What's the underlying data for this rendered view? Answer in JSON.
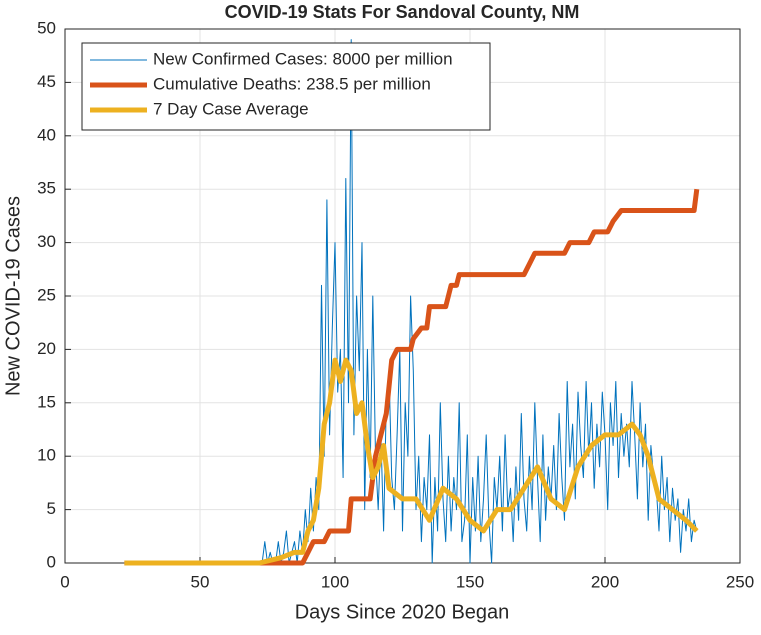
{
  "chart_data": {
    "type": "line",
    "title": "COVID-19 Stats For Sandoval County, NM",
    "xlabel": "Days Since 2020 Began",
    "ylabel": "New COVID-19 Cases",
    "xlim": [
      0,
      250
    ],
    "xticks": [
      0,
      50,
      100,
      150,
      200,
      250
    ],
    "ylim": [
      0,
      50
    ],
    "yticks": [
      0,
      5,
      10,
      15,
      20,
      25,
      30,
      35,
      40,
      45,
      50
    ],
    "grid": true,
    "legend": "northwest",
    "series": [
      {
        "name": "New Confirmed Cases: 8000 per million",
        "color": "#0072BD",
        "width": 1,
        "x": [
          22,
          23,
          24,
          25,
          26,
          27,
          28,
          29,
          30,
          31,
          32,
          33,
          34,
          35,
          36,
          37,
          38,
          39,
          40,
          41,
          42,
          43,
          44,
          45,
          46,
          47,
          48,
          49,
          50,
          51,
          52,
          53,
          54,
          55,
          56,
          57,
          58,
          59,
          60,
          61,
          62,
          63,
          64,
          65,
          66,
          67,
          68,
          69,
          70,
          71,
          72,
          73,
          74,
          75,
          76,
          77,
          78,
          79,
          80,
          81,
          82,
          83,
          84,
          85,
          86,
          87,
          88,
          89,
          90,
          91,
          92,
          93,
          94,
          95,
          96,
          97,
          98,
          99,
          100,
          101,
          102,
          103,
          104,
          105,
          106,
          107,
          108,
          109,
          110,
          111,
          112,
          113,
          114,
          115,
          116,
          117,
          118,
          119,
          120,
          121,
          122,
          123,
          124,
          125,
          126,
          127,
          128,
          129,
          130,
          131,
          132,
          133,
          134,
          135,
          136,
          137,
          138,
          139,
          140,
          141,
          142,
          143,
          144,
          145,
          146,
          147,
          148,
          149,
          150,
          151,
          152,
          153,
          154,
          155,
          156,
          157,
          158,
          159,
          160,
          161,
          162,
          163,
          164,
          165,
          166,
          167,
          168,
          169,
          170,
          171,
          172,
          173,
          174,
          175,
          176,
          177,
          178,
          179,
          180,
          181,
          182,
          183,
          184,
          185,
          186,
          187,
          188,
          189,
          190,
          191,
          192,
          193,
          194,
          195,
          196,
          197,
          198,
          199,
          200,
          201,
          202,
          203,
          204,
          205,
          206,
          207,
          208,
          209,
          210,
          211,
          212,
          213,
          214,
          215,
          216,
          217,
          218,
          219,
          220,
          221,
          222,
          223,
          224,
          225,
          226,
          227,
          228,
          229,
          230,
          231,
          232,
          233,
          234
        ],
        "values": [
          0,
          0,
          0,
          0,
          0,
          0,
          0,
          0,
          0,
          0,
          0,
          0,
          0,
          0,
          0,
          0,
          0,
          0,
          0,
          0,
          0,
          0,
          0,
          0,
          0,
          0,
          0,
          0,
          0,
          0,
          0,
          0,
          0,
          0,
          0,
          0,
          0,
          0,
          0,
          0,
          0,
          0,
          0,
          0,
          0,
          0,
          0,
          0,
          0,
          0,
          0,
          0,
          2,
          0,
          1,
          0,
          0,
          2,
          0,
          1,
          3,
          0,
          1,
          2,
          0,
          3,
          1,
          5,
          2,
          7,
          3,
          8,
          5,
          26,
          10,
          34,
          12,
          22,
          30,
          16,
          20,
          8,
          36,
          15,
          49,
          12,
          25,
          18,
          30,
          5,
          20,
          8,
          25,
          10,
          5,
          12,
          3,
          15,
          18,
          8,
          5,
          12,
          20,
          3,
          15,
          10,
          25,
          18,
          5,
          10,
          2,
          8,
          5,
          12,
          0,
          8,
          3,
          15,
          6,
          2,
          10,
          3,
          8,
          5,
          15,
          2,
          4,
          12,
          0,
          8,
          3,
          10,
          2,
          6,
          12,
          4,
          0,
          8,
          5,
          10,
          3,
          12,
          5,
          7,
          2,
          9,
          4,
          14,
          6,
          3,
          10,
          5,
          15,
          8,
          2,
          12,
          4,
          9,
          6,
          11,
          5,
          14,
          8,
          4,
          17,
          9,
          13,
          6,
          16,
          11,
          8,
          17,
          10,
          15,
          7,
          13,
          9,
          16,
          12,
          5,
          15,
          11,
          17,
          8,
          14,
          10,
          13,
          9,
          17,
          12,
          6,
          15,
          9,
          13,
          4,
          11,
          8,
          7,
          3,
          10,
          5,
          8,
          2,
          7,
          4,
          6,
          1,
          5,
          3,
          6,
          2,
          4,
          3
        ]
      },
      {
        "name": "Cumulative Deaths: 238.5 per million",
        "color": "#D95319",
        "width": 5,
        "x": [
          22,
          88,
          90,
          92,
          96,
          98,
          105,
          106,
          113,
          115,
          117,
          119,
          121,
          123,
          128,
          129,
          132,
          134,
          135,
          141,
          143,
          145,
          146,
          170,
          172,
          174,
          185,
          187,
          194,
          196,
          201,
          203,
          206,
          233,
          234
        ],
        "values": [
          0,
          0,
          1,
          2,
          2,
          3,
          3,
          6,
          6,
          10,
          12,
          14,
          19,
          20,
          20,
          21,
          22,
          22,
          24,
          24,
          26,
          26,
          27,
          27,
          28,
          29,
          29,
          30,
          30,
          31,
          31,
          32,
          33,
          33,
          35
        ]
      },
      {
        "name": "7 Day Case Average",
        "color": "#EDB120",
        "width": 5,
        "x": [
          22,
          72,
          80,
          85,
          88,
          90,
          92,
          94,
          96,
          98,
          100,
          102,
          104,
          106,
          108,
          110,
          112,
          114,
          116,
          118,
          120,
          125,
          130,
          135,
          140,
          145,
          150,
          155,
          160,
          165,
          170,
          175,
          180,
          185,
          190,
          195,
          200,
          205,
          210,
          213,
          216,
          220,
          225,
          230,
          234
        ],
        "values": [
          0,
          0,
          0.5,
          1,
          1,
          3,
          4,
          7,
          13,
          15,
          19,
          17,
          19,
          18,
          14,
          15,
          11,
          8,
          9,
          11,
          7,
          6,
          6,
          4,
          7,
          6,
          4,
          3,
          5,
          5,
          7,
          9,
          6,
          5,
          9,
          11,
          12,
          12,
          13,
          12,
          10,
          6,
          5,
          4,
          3
        ]
      }
    ]
  }
}
